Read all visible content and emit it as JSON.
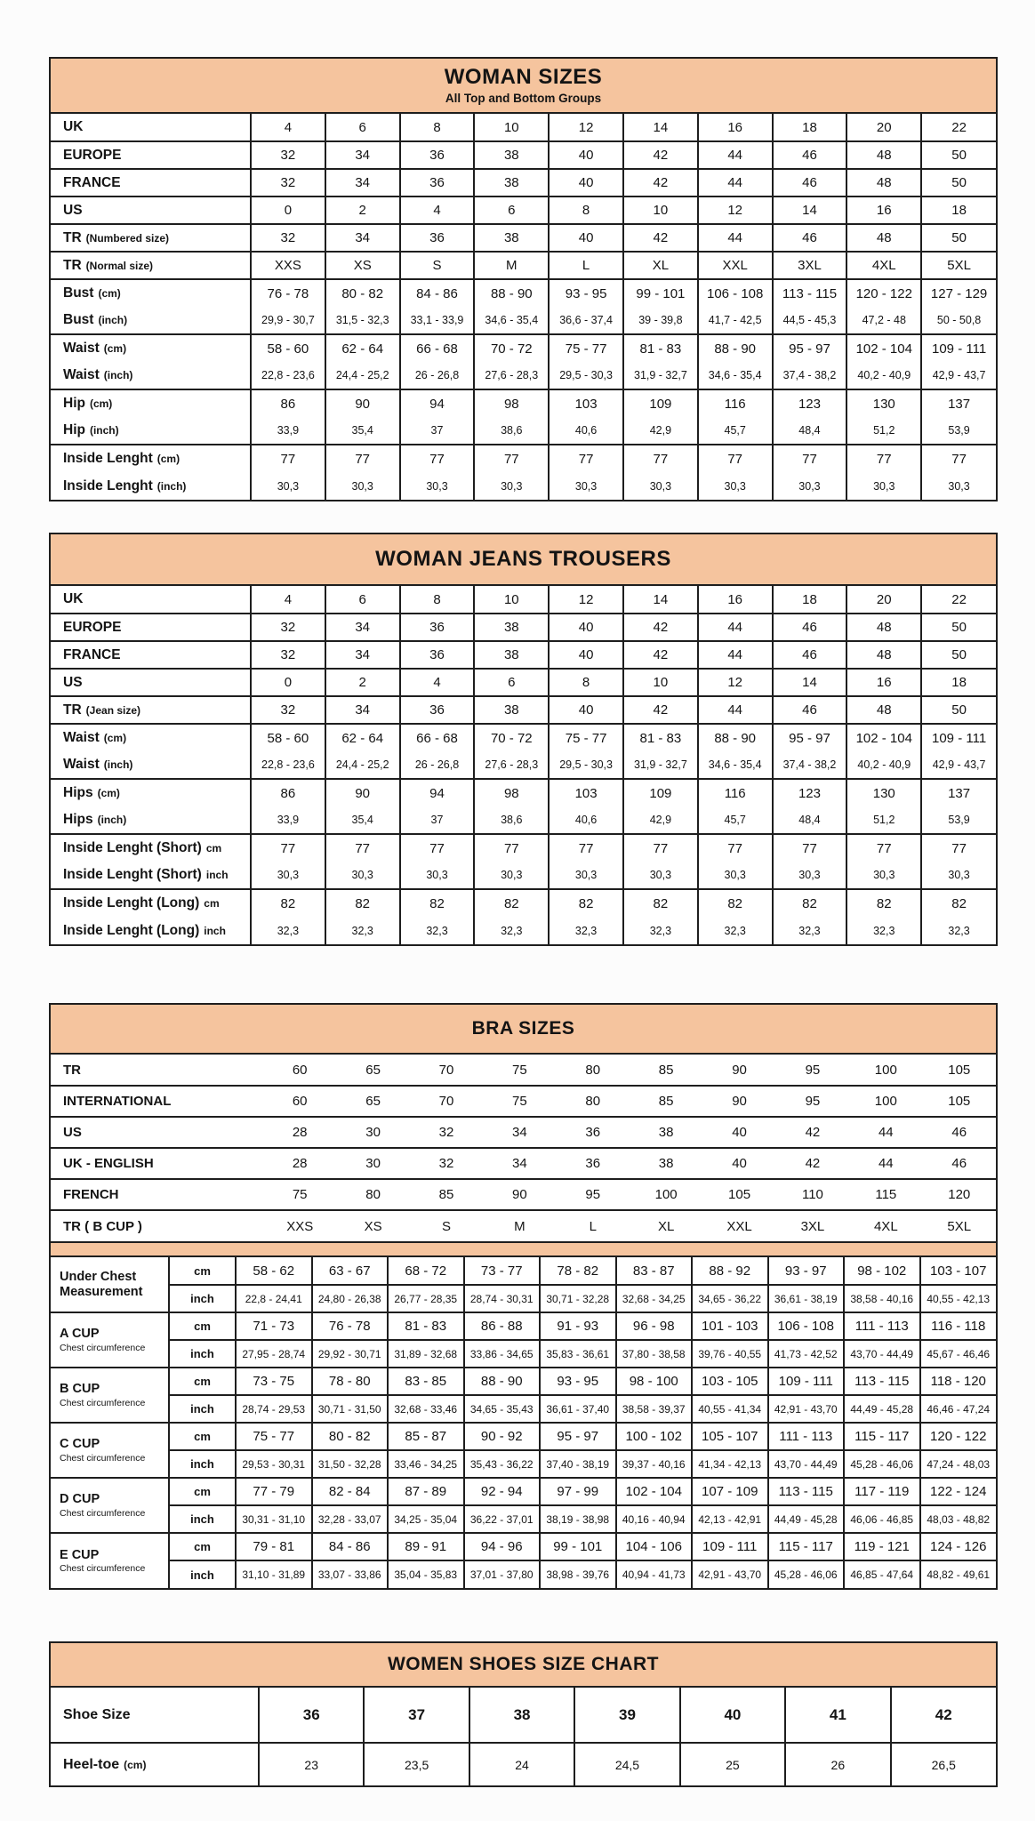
{
  "theme": {
    "accent": "#f5c49e",
    "border": "#1e1e1e",
    "text": "#141414",
    "background": "#ffffff"
  },
  "woman_sizes": {
    "id": "woman-sizes",
    "kind": "sizes",
    "title": "WOMAN SIZES",
    "subtitle": "All Top and Bottom Groups",
    "groups": [
      {
        "rows": [
          {
            "label": "UK",
            "values": [
              "4",
              "6",
              "8",
              "10",
              "12",
              "14",
              "16",
              "18",
              "20",
              "22"
            ]
          }
        ]
      },
      {
        "rows": [
          {
            "label": "EUROPE",
            "values": [
              "32",
              "34",
              "36",
              "38",
              "40",
              "42",
              "44",
              "46",
              "48",
              "50"
            ]
          }
        ]
      },
      {
        "rows": [
          {
            "label": "FRANCE",
            "values": [
              "32",
              "34",
              "36",
              "38",
              "40",
              "42",
              "44",
              "46",
              "48",
              "50"
            ]
          }
        ]
      },
      {
        "rows": [
          {
            "label": "US",
            "values": [
              "0",
              "2",
              "4",
              "6",
              "8",
              "10",
              "12",
              "14",
              "16",
              "18"
            ]
          }
        ]
      },
      {
        "rows": [
          {
            "label": "TR",
            "note": "(Numbered size)",
            "values": [
              "32",
              "34",
              "36",
              "38",
              "40",
              "42",
              "44",
              "46",
              "48",
              "50"
            ]
          }
        ]
      },
      {
        "rows": [
          {
            "label": "TR",
            "note": "(Normal size)",
            "values": [
              "XXS",
              "XS",
              "S",
              "M",
              "L",
              "XL",
              "XXL",
              "3XL",
              "4XL",
              "5XL"
            ]
          }
        ]
      },
      {
        "rows": [
          {
            "label": "Bust",
            "note": "(cm)",
            "values": [
              "76 - 78",
              "80 - 82",
              "84 - 86",
              "88 - 90",
              "93 - 95",
              "99 - 101",
              "106 - 108",
              "113 - 115",
              "120 - 122",
              "127 - 129"
            ]
          },
          {
            "label": "Bust",
            "note": "(inch)",
            "values": [
              "29,9 - 30,7",
              "31,5 - 32,3",
              "33,1 - 33,9",
              "34,6 - 35,4",
              "36,6 - 37,4",
              "39 - 39,8",
              "41,7 - 42,5",
              "44,5 - 45,3",
              "47,2 - 48",
              "50 - 50,8"
            ]
          }
        ]
      },
      {
        "rows": [
          {
            "label": "Waist",
            "note": "(cm)",
            "values": [
              "58 - 60",
              "62 - 64",
              "66 - 68",
              "70 - 72",
              "75 - 77",
              "81 - 83",
              "88 - 90",
              "95 - 97",
              "102 - 104",
              "109 - 111"
            ]
          },
          {
            "label": "Waist",
            "note": "(inch)",
            "values": [
              "22,8 - 23,6",
              "24,4 - 25,2",
              "26 - 26,8",
              "27,6 - 28,3",
              "29,5 - 30,3",
              "31,9 - 32,7",
              "34,6 - 35,4",
              "37,4 - 38,2",
              "40,2 - 40,9",
              "42,9 - 43,7"
            ]
          }
        ]
      },
      {
        "rows": [
          {
            "label": "Hip",
            "note": "(cm)",
            "values": [
              "86",
              "90",
              "94",
              "98",
              "103",
              "109",
              "116",
              "123",
              "130",
              "137"
            ]
          },
          {
            "label": "Hip",
            "note": "(inch)",
            "values": [
              "33,9",
              "35,4",
              "37",
              "38,6",
              "40,6",
              "42,9",
              "45,7",
              "48,4",
              "51,2",
              "53,9"
            ]
          }
        ]
      },
      {
        "rows": [
          {
            "label": "Inside Lenght",
            "note": "(cm)",
            "values": [
              "77",
              "77",
              "77",
              "77",
              "77",
              "77",
              "77",
              "77",
              "77",
              "77"
            ]
          },
          {
            "label": "Inside Lenght",
            "note": "(inch)",
            "values": [
              "30,3",
              "30,3",
              "30,3",
              "30,3",
              "30,3",
              "30,3",
              "30,3",
              "30,3",
              "30,3",
              "30,3"
            ]
          }
        ]
      }
    ]
  },
  "jeans": {
    "id": "woman-jeans",
    "kind": "sizes",
    "title": "WOMAN JEANS TROUSERS",
    "groups": [
      {
        "rows": [
          {
            "label": "UK",
            "values": [
              "4",
              "6",
              "8",
              "10",
              "12",
              "14",
              "16",
              "18",
              "20",
              "22"
            ]
          }
        ]
      },
      {
        "rows": [
          {
            "label": "EUROPE",
            "values": [
              "32",
              "34",
              "36",
              "38",
              "40",
              "42",
              "44",
              "46",
              "48",
              "50"
            ]
          }
        ]
      },
      {
        "rows": [
          {
            "label": "FRANCE",
            "values": [
              "32",
              "34",
              "36",
              "38",
              "40",
              "42",
              "44",
              "46",
              "48",
              "50"
            ]
          }
        ]
      },
      {
        "rows": [
          {
            "label": "US",
            "values": [
              "0",
              "2",
              "4",
              "6",
              "8",
              "10",
              "12",
              "14",
              "16",
              "18"
            ]
          }
        ]
      },
      {
        "rows": [
          {
            "label": "TR",
            "note": "(Jean size)",
            "values": [
              "32",
              "34",
              "36",
              "38",
              "40",
              "42",
              "44",
              "46",
              "48",
              "50"
            ]
          }
        ]
      },
      {
        "rows": [
          {
            "label": "Waist",
            "note": "(cm)",
            "values": [
              "58 - 60",
              "62 - 64",
              "66 - 68",
              "70 - 72",
              "75 - 77",
              "81 - 83",
              "88 - 90",
              "95 - 97",
              "102 - 104",
              "109 - 111"
            ]
          },
          {
            "label": "Waist",
            "note": "(inch)",
            "values": [
              "22,8 - 23,6",
              "24,4 - 25,2",
              "26 - 26,8",
              "27,6 - 28,3",
              "29,5 - 30,3",
              "31,9 - 32,7",
              "34,6 - 35,4",
              "37,4 - 38,2",
              "40,2 - 40,9",
              "42,9 - 43,7"
            ]
          }
        ]
      },
      {
        "rows": [
          {
            "label": "Hips",
            "note": "(cm)",
            "values": [
              "86",
              "90",
              "94",
              "98",
              "103",
              "109",
              "116",
              "123",
              "130",
              "137"
            ]
          },
          {
            "label": "Hips",
            "note": "(inch)",
            "values": [
              "33,9",
              "35,4",
              "37",
              "38,6",
              "40,6",
              "42,9",
              "45,7",
              "48,4",
              "51,2",
              "53,9"
            ]
          }
        ]
      },
      {
        "rows": [
          {
            "label": "Inside Lenght (Short)",
            "note": "cm",
            "values": [
              "77",
              "77",
              "77",
              "77",
              "77",
              "77",
              "77",
              "77",
              "77",
              "77"
            ]
          },
          {
            "label": "Inside Lenght (Short)",
            "note": "inch",
            "values": [
              "30,3",
              "30,3",
              "30,3",
              "30,3",
              "30,3",
              "30,3",
              "30,3",
              "30,3",
              "30,3",
              "30,3"
            ]
          }
        ]
      },
      {
        "rows": [
          {
            "label": "Inside Lenght (Long)",
            "note": "cm",
            "values": [
              "82",
              "82",
              "82",
              "82",
              "82",
              "82",
              "82",
              "82",
              "82",
              "82"
            ]
          },
          {
            "label": "Inside Lenght (Long)",
            "note": "inch",
            "values": [
              "32,3",
              "32,3",
              "32,3",
              "32,3",
              "32,3",
              "32,3",
              "32,3",
              "32,3",
              "32,3",
              "32,3"
            ]
          }
        ]
      }
    ]
  },
  "bra_sizes": {
    "id": "bra-sizes",
    "kind": "bra",
    "title": "BRA SIZES",
    "units": [
      "cm",
      "inch"
    ],
    "top_rows": [
      {
        "label": "TR",
        "values": [
          "60",
          "65",
          "70",
          "75",
          "80",
          "85",
          "90",
          "95",
          "100",
          "105"
        ]
      },
      {
        "label": "INTERNATIONAL",
        "values": [
          "60",
          "65",
          "70",
          "75",
          "80",
          "85",
          "90",
          "95",
          "100",
          "105"
        ]
      },
      {
        "label": "US",
        "values": [
          "28",
          "30",
          "32",
          "34",
          "36",
          "38",
          "40",
          "42",
          "44",
          "46"
        ]
      },
      {
        "label": "UK - ENGLISH",
        "values": [
          "28",
          "30",
          "32",
          "34",
          "36",
          "38",
          "40",
          "42",
          "44",
          "46"
        ]
      },
      {
        "label": "FRENCH",
        "values": [
          "75",
          "80",
          "85",
          "90",
          "95",
          "100",
          "105",
          "110",
          "115",
          "120"
        ]
      },
      {
        "label": "TR ( B CUP )",
        "values": [
          "XXS",
          "XS",
          "S",
          "M",
          "L",
          "XL",
          "XXL",
          "3XL",
          "4XL",
          "5XL"
        ]
      }
    ],
    "groups": [
      {
        "label": "Under Chest Measurement",
        "sub": "",
        "cm": [
          "58 - 62",
          "63 - 67",
          "68 - 72",
          "73 - 77",
          "78 - 82",
          "83 - 87",
          "88 - 92",
          "93 - 97",
          "98 - 102",
          "103 - 107"
        ],
        "inch": [
          "22,8 - 24,41",
          "24,80 - 26,38",
          "26,77 - 28,35",
          "28,74 - 30,31",
          "30,71 - 32,28",
          "32,68 - 34,25",
          "34,65 - 36,22",
          "36,61 - 38,19",
          "38,58 - 40,16",
          "40,55 - 42,13"
        ]
      },
      {
        "label": "A CUP",
        "sub": "Chest circumference",
        "cm": [
          "71 - 73",
          "76 - 78",
          "81 - 83",
          "86 - 88",
          "91 - 93",
          "96 - 98",
          "101 - 103",
          "106 - 108",
          "111 - 113",
          "116 - 118"
        ],
        "inch": [
          "27,95 - 28,74",
          "29,92 - 30,71",
          "31,89 - 32,68",
          "33,86 - 34,65",
          "35,83 - 36,61",
          "37,80 - 38,58",
          "39,76 - 40,55",
          "41,73 - 42,52",
          "43,70 - 44,49",
          "45,67 - 46,46"
        ]
      },
      {
        "label": "B CUP",
        "sub": "Chest circumference",
        "cm": [
          "73 - 75",
          "78 - 80",
          "83 - 85",
          "88 - 90",
          "93 - 95",
          "98 - 100",
          "103 - 105",
          "109 - 111",
          "113 - 115",
          "118 - 120"
        ],
        "inch": [
          "28,74 - 29,53",
          "30,71 - 31,50",
          "32,68 - 33,46",
          "34,65 - 35,43",
          "36,61 - 37,40",
          "38,58 - 39,37",
          "40,55 - 41,34",
          "42,91 - 43,70",
          "44,49 - 45,28",
          "46,46 - 47,24"
        ]
      },
      {
        "label": "C CUP",
        "sub": "Chest circumference",
        "cm": [
          "75 - 77",
          "80 - 82",
          "85 - 87",
          "90 - 92",
          "95 - 97",
          "100 - 102",
          "105 - 107",
          "111 - 113",
          "115 - 117",
          "120 - 122"
        ],
        "inch": [
          "29,53 - 30,31",
          "31,50 - 32,28",
          "33,46 - 34,25",
          "35,43 - 36,22",
          "37,40 - 38,19",
          "39,37 - 40,16",
          "41,34 - 42,13",
          "43,70 - 44,49",
          "45,28 - 46,06",
          "47,24 - 48,03"
        ]
      },
      {
        "label": "D CUP",
        "sub": "Chest circumference",
        "cm": [
          "77 - 79",
          "82 - 84",
          "87 - 89",
          "92 - 94",
          "97 - 99",
          "102 - 104",
          "107 - 109",
          "113 - 115",
          "117 - 119",
          "122 - 124"
        ],
        "inch": [
          "30,31 - 31,10",
          "32,28 - 33,07",
          "34,25 - 35,04",
          "36,22 - 37,01",
          "38,19 - 38,98",
          "40,16 - 40,94",
          "42,13 - 42,91",
          "44,49 - 45,28",
          "46,06 - 46,85",
          "48,03 - 48,82"
        ]
      },
      {
        "label": "E CUP",
        "sub": "Chest circumference",
        "cm": [
          "79 - 81",
          "84 - 86",
          "89 - 91",
          "94 - 96",
          "99 - 101",
          "104 - 106",
          "109 - 111",
          "115 - 117",
          "119 - 121",
          "124 - 126"
        ],
        "inch": [
          "31,10 - 31,89",
          "33,07 - 33,86",
          "35,04 - 35,83",
          "37,01 - 37,80",
          "38,98 - 39,76",
          "40,94 - 41,73",
          "42,91 - 43,70",
          "45,28 - 46,06",
          "46,85 - 47,64",
          "48,82 - 49,61"
        ]
      }
    ]
  },
  "shoes": {
    "id": "women-shoes",
    "kind": "sizes",
    "title": "WOMEN SHOES SIZE CHART",
    "groups": [
      {
        "rows": [
          {
            "label": "Shoe Size",
            "values": [
              "36",
              "37",
              "38",
              "39",
              "40",
              "41",
              "42"
            ]
          }
        ]
      },
      {
        "rows": [
          {
            "label": "Heel-toe",
            "note": "(cm)",
            "values": [
              "23",
              "23,5",
              "24",
              "24,5",
              "25",
              "26",
              "26,5"
            ]
          }
        ]
      }
    ]
  }
}
